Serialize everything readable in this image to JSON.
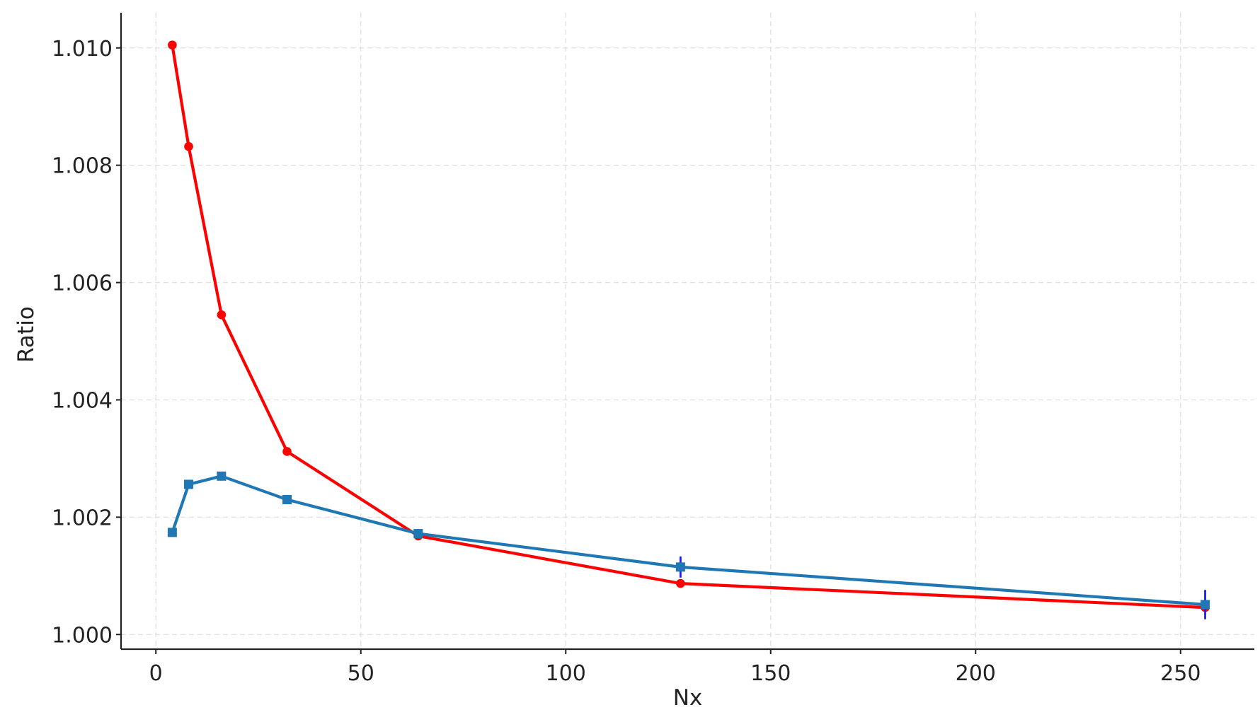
{
  "chart_data": {
    "type": "line",
    "xlabel": "Nx",
    "ylabel": "Ratio",
    "xlim": [
      -8.5,
      268
    ],
    "ylim": [
      0.99975,
      1.0106
    ],
    "xticks": [
      0,
      50,
      100,
      150,
      200,
      250
    ],
    "xtick_labels": [
      "0",
      "50",
      "100",
      "150",
      "200",
      "250"
    ],
    "yticks": [
      1.0,
      1.002,
      1.004,
      1.006,
      1.008,
      1.01
    ],
    "ytick_labels": [
      "1.000",
      "1.002",
      "1.004",
      "1.006",
      "1.008",
      "1.010"
    ],
    "grid": true,
    "legend": "none",
    "series": [
      {
        "color": "#ff0000",
        "marker": "circle",
        "x": [
          4,
          8,
          16,
          32,
          64,
          128,
          256
        ],
        "y": [
          1.01005,
          1.00832,
          1.00545,
          1.00312,
          1.00168,
          1.00087,
          1.00046
        ],
        "yerr": [
          0,
          0,
          0,
          0,
          0,
          0,
          0
        ],
        "errcolor": "#1a1aff"
      },
      {
        "color": "#1f77b4",
        "marker": "square",
        "x": [
          4,
          8,
          16,
          32,
          64,
          128,
          256
        ],
        "y": [
          1.00174,
          1.00256,
          1.0027,
          1.0023,
          1.00172,
          1.00115,
          1.00051
        ],
        "yerr": [
          2e-05,
          2e-05,
          2e-05,
          3e-05,
          8e-05,
          0.00018,
          0.00025
        ],
        "errcolor": "#1a1aff"
      }
    ]
  }
}
